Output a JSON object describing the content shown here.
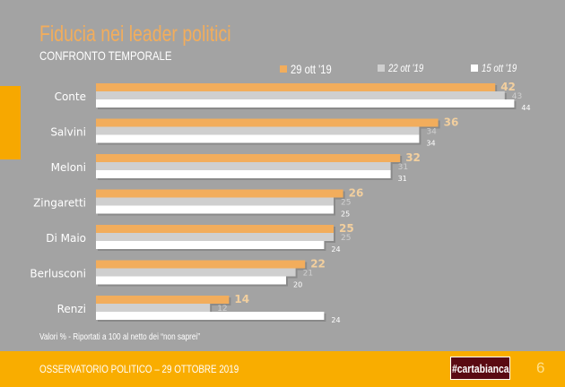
{
  "header": {
    "title": "Fiducia nei leader politici",
    "subtitle": "CONFRONTO TEMPORALE"
  },
  "legend": [
    {
      "label": "29 ott '19",
      "color": "#f2ad5c"
    },
    {
      "label": "22 ott '19",
      "color": "#cfcfcf"
    },
    {
      "label": "15 ott '19",
      "color": "#ffffff"
    }
  ],
  "note": "Valori % - Riportati a 100 al netto dei “non saprei”",
  "footer": {
    "text": "OSSERVATORIO POLITICO – 29 OTTOBRE 2019",
    "logo": "#cartabianca",
    "page": "6"
  },
  "chart_data": {
    "type": "bar",
    "orientation": "horizontal",
    "title": "Fiducia nei leader politici",
    "subtitle": "CONFRONTO TEMPORALE",
    "categories": [
      "Conte",
      "Salvini",
      "Meloni",
      "Zingaretti",
      "Di Maio",
      "Berlusconi",
      "Renzi"
    ],
    "series": [
      {
        "name": "29 ott '19",
        "color": "#f2ad5c",
        "values": [
          42,
          36,
          32,
          26,
          25,
          22,
          14
        ]
      },
      {
        "name": "22 ott '19",
        "color": "#cfcfcf",
        "values": [
          43,
          34,
          31,
          25,
          25,
          21,
          12
        ]
      },
      {
        "name": "15 ott '19",
        "color": "#ffffff",
        "values": [
          44,
          34,
          31,
          25,
          24,
          20,
          24
        ]
      }
    ],
    "xlabel": "",
    "ylabel": "",
    "legend_position": "top-right",
    "grid": false
  }
}
